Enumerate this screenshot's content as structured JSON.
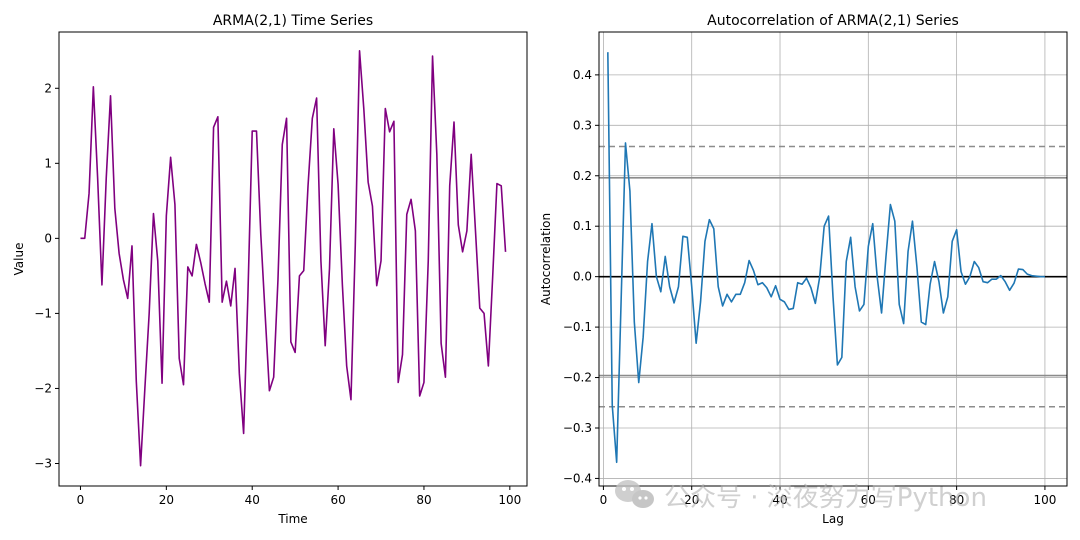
{
  "chart_data": [
    {
      "type": "line",
      "title": "ARMA(2,1) Time Series",
      "xlabel": "Time",
      "ylabel": "Value",
      "xlim": [
        -5,
        104
      ],
      "ylim": [
        -3.3,
        2.75
      ],
      "xticks": [
        0,
        20,
        40,
        60,
        80,
        100
      ],
      "yticks": [
        -3,
        -2,
        -1,
        0,
        1,
        2
      ],
      "grid": false,
      "color": "#800080",
      "series": [
        {
          "x": [
            0,
            1,
            2,
            3,
            4,
            5,
            6,
            7,
            8,
            9,
            10,
            11,
            12,
            13,
            14,
            15,
            16,
            17,
            18,
            19,
            20,
            21,
            22,
            23,
            24,
            25,
            26,
            27,
            28,
            29,
            30,
            31,
            32,
            33,
            34,
            35,
            36,
            37,
            38,
            39,
            40,
            41,
            42,
            43,
            44,
            45,
            46,
            47,
            48,
            49,
            50,
            51,
            52,
            53,
            54,
            55,
            56,
            57,
            58,
            59,
            60,
            61,
            62,
            63,
            64,
            65,
            66,
            67,
            68,
            69,
            70,
            71,
            72,
            73,
            74,
            75,
            76,
            77,
            78,
            79,
            80,
            81,
            82,
            83,
            84,
            85,
            86,
            87,
            88,
            89,
            90,
            91,
            92,
            93,
            94,
            95,
            96,
            97,
            98,
            99
          ],
          "values": [
            0,
            0,
            0.6,
            2.02,
            0.8,
            -0.62,
            0.8,
            1.9,
            0.4,
            -0.2,
            -0.55,
            -0.8,
            -0.1,
            -1.9,
            -3.03,
            -2.0,
            -1.0,
            0.33,
            -0.3,
            -1.93,
            0.3,
            1.08,
            0.45,
            -1.6,
            -1.95,
            -0.38,
            -0.5,
            -0.08,
            -0.32,
            -0.6,
            -0.85,
            1.48,
            1.62,
            -0.85,
            -0.57,
            -0.9,
            -0.4,
            -1.8,
            -2.6,
            -0.75,
            1.43,
            1.43,
            0.05,
            -1.0,
            -2.03,
            -1.85,
            -0.55,
            1.25,
            1.6,
            -1.38,
            -1.52,
            -0.5,
            -0.43,
            0.7,
            1.6,
            1.87,
            -0.3,
            -1.43,
            -0.4,
            1.46,
            0.72,
            -0.62,
            -1.7,
            -2.15,
            -0.1,
            2.5,
            1.72,
            0.75,
            0.43,
            -0.63,
            -0.3,
            1.73,
            1.42,
            1.56,
            -1.92,
            -1.55,
            0.32,
            0.52,
            0.1,
            -2.1,
            -1.92,
            -0.3,
            2.43,
            1.12,
            -1.4,
            -1.85,
            0.7,
            1.55,
            0.18,
            -0.18,
            0.1,
            1.12,
            0.1,
            -0.93,
            -1.0,
            -1.7,
            -0.52,
            0.73,
            0.7,
            -0.18
          ]
        }
      ]
    },
    {
      "type": "line",
      "title": "Autocorrelation of ARMA(2,1) Series",
      "xlabel": "Lag",
      "ylabel": "Autocorrelation",
      "xlim": [
        -1,
        105
      ],
      "ylim": [
        -0.415,
        0.485
      ],
      "xticks": [
        0,
        20,
        40,
        60,
        80,
        100
      ],
      "yticks": [
        -0.4,
        -0.3,
        -0.2,
        -0.1,
        0.0,
        0.1,
        0.2,
        0.3,
        0.4
      ],
      "ytick_labels": [
        "−0.4",
        "−0.3",
        "−0.2",
        "−0.1",
        "0.0",
        "0.1",
        "0.2",
        "0.3",
        "0.4"
      ],
      "grid": true,
      "color": "#1f77b4",
      "confidence_levels": {
        "solid": 0.196,
        "dashed": 0.258
      },
      "series": [
        {
          "x": [
            1,
            2,
            3,
            4,
            5,
            6,
            7,
            8,
            9,
            10,
            11,
            12,
            13,
            14,
            15,
            16,
            17,
            18,
            19,
            20,
            21,
            22,
            23,
            24,
            25,
            26,
            27,
            28,
            29,
            30,
            31,
            32,
            33,
            34,
            35,
            36,
            37,
            38,
            39,
            40,
            41,
            42,
            43,
            44,
            45,
            46,
            47,
            48,
            49,
            50,
            51,
            52,
            53,
            54,
            55,
            56,
            57,
            58,
            59,
            60,
            61,
            62,
            63,
            64,
            65,
            66,
            67,
            68,
            69,
            70,
            71,
            72,
            73,
            74,
            75,
            76,
            77,
            78,
            79,
            80,
            81,
            82,
            83,
            84,
            85,
            86,
            87,
            88,
            89,
            90,
            91,
            92,
            93,
            94,
            95,
            96,
            97,
            98,
            99,
            100
          ],
          "values": [
            0.445,
            -0.255,
            -0.368,
            -0.05,
            0.265,
            0.17,
            -0.09,
            -0.21,
            -0.12,
            0.03,
            0.105,
            0.0,
            -0.03,
            0.04,
            -0.02,
            -0.052,
            -0.02,
            0.08,
            0.078,
            -0.02,
            -0.132,
            -0.05,
            0.07,
            0.113,
            0.095,
            -0.02,
            -0.058,
            -0.035,
            -0.05,
            -0.035,
            -0.035,
            -0.012,
            0.032,
            0.012,
            -0.016,
            -0.012,
            -0.022,
            -0.04,
            -0.018,
            -0.045,
            -0.05,
            -0.065,
            -0.063,
            -0.012,
            -0.015,
            -0.003,
            -0.022,
            -0.053,
            0.0,
            0.1,
            0.12,
            -0.04,
            -0.175,
            -0.16,
            0.03,
            0.078,
            -0.02,
            -0.068,
            -0.055,
            0.06,
            0.105,
            0.0,
            -0.072,
            0.04,
            0.143,
            0.11,
            -0.055,
            -0.093,
            0.05,
            0.11,
            0.02,
            -0.09,
            -0.095,
            -0.015,
            0.03,
            -0.01,
            -0.072,
            -0.04,
            0.07,
            0.093,
            0.01,
            -0.015,
            0.0,
            0.03,
            0.018,
            -0.01,
            -0.012,
            -0.005,
            -0.005,
            0.002,
            -0.01,
            -0.027,
            -0.013,
            0.015,
            0.014,
            0.005,
            0.002,
            0.001,
            0.0,
            0.0
          ]
        }
      ]
    }
  ],
  "watermark": {
    "text": "公众号 · 深夜努力写Python",
    "icon": "wechat-icon"
  }
}
